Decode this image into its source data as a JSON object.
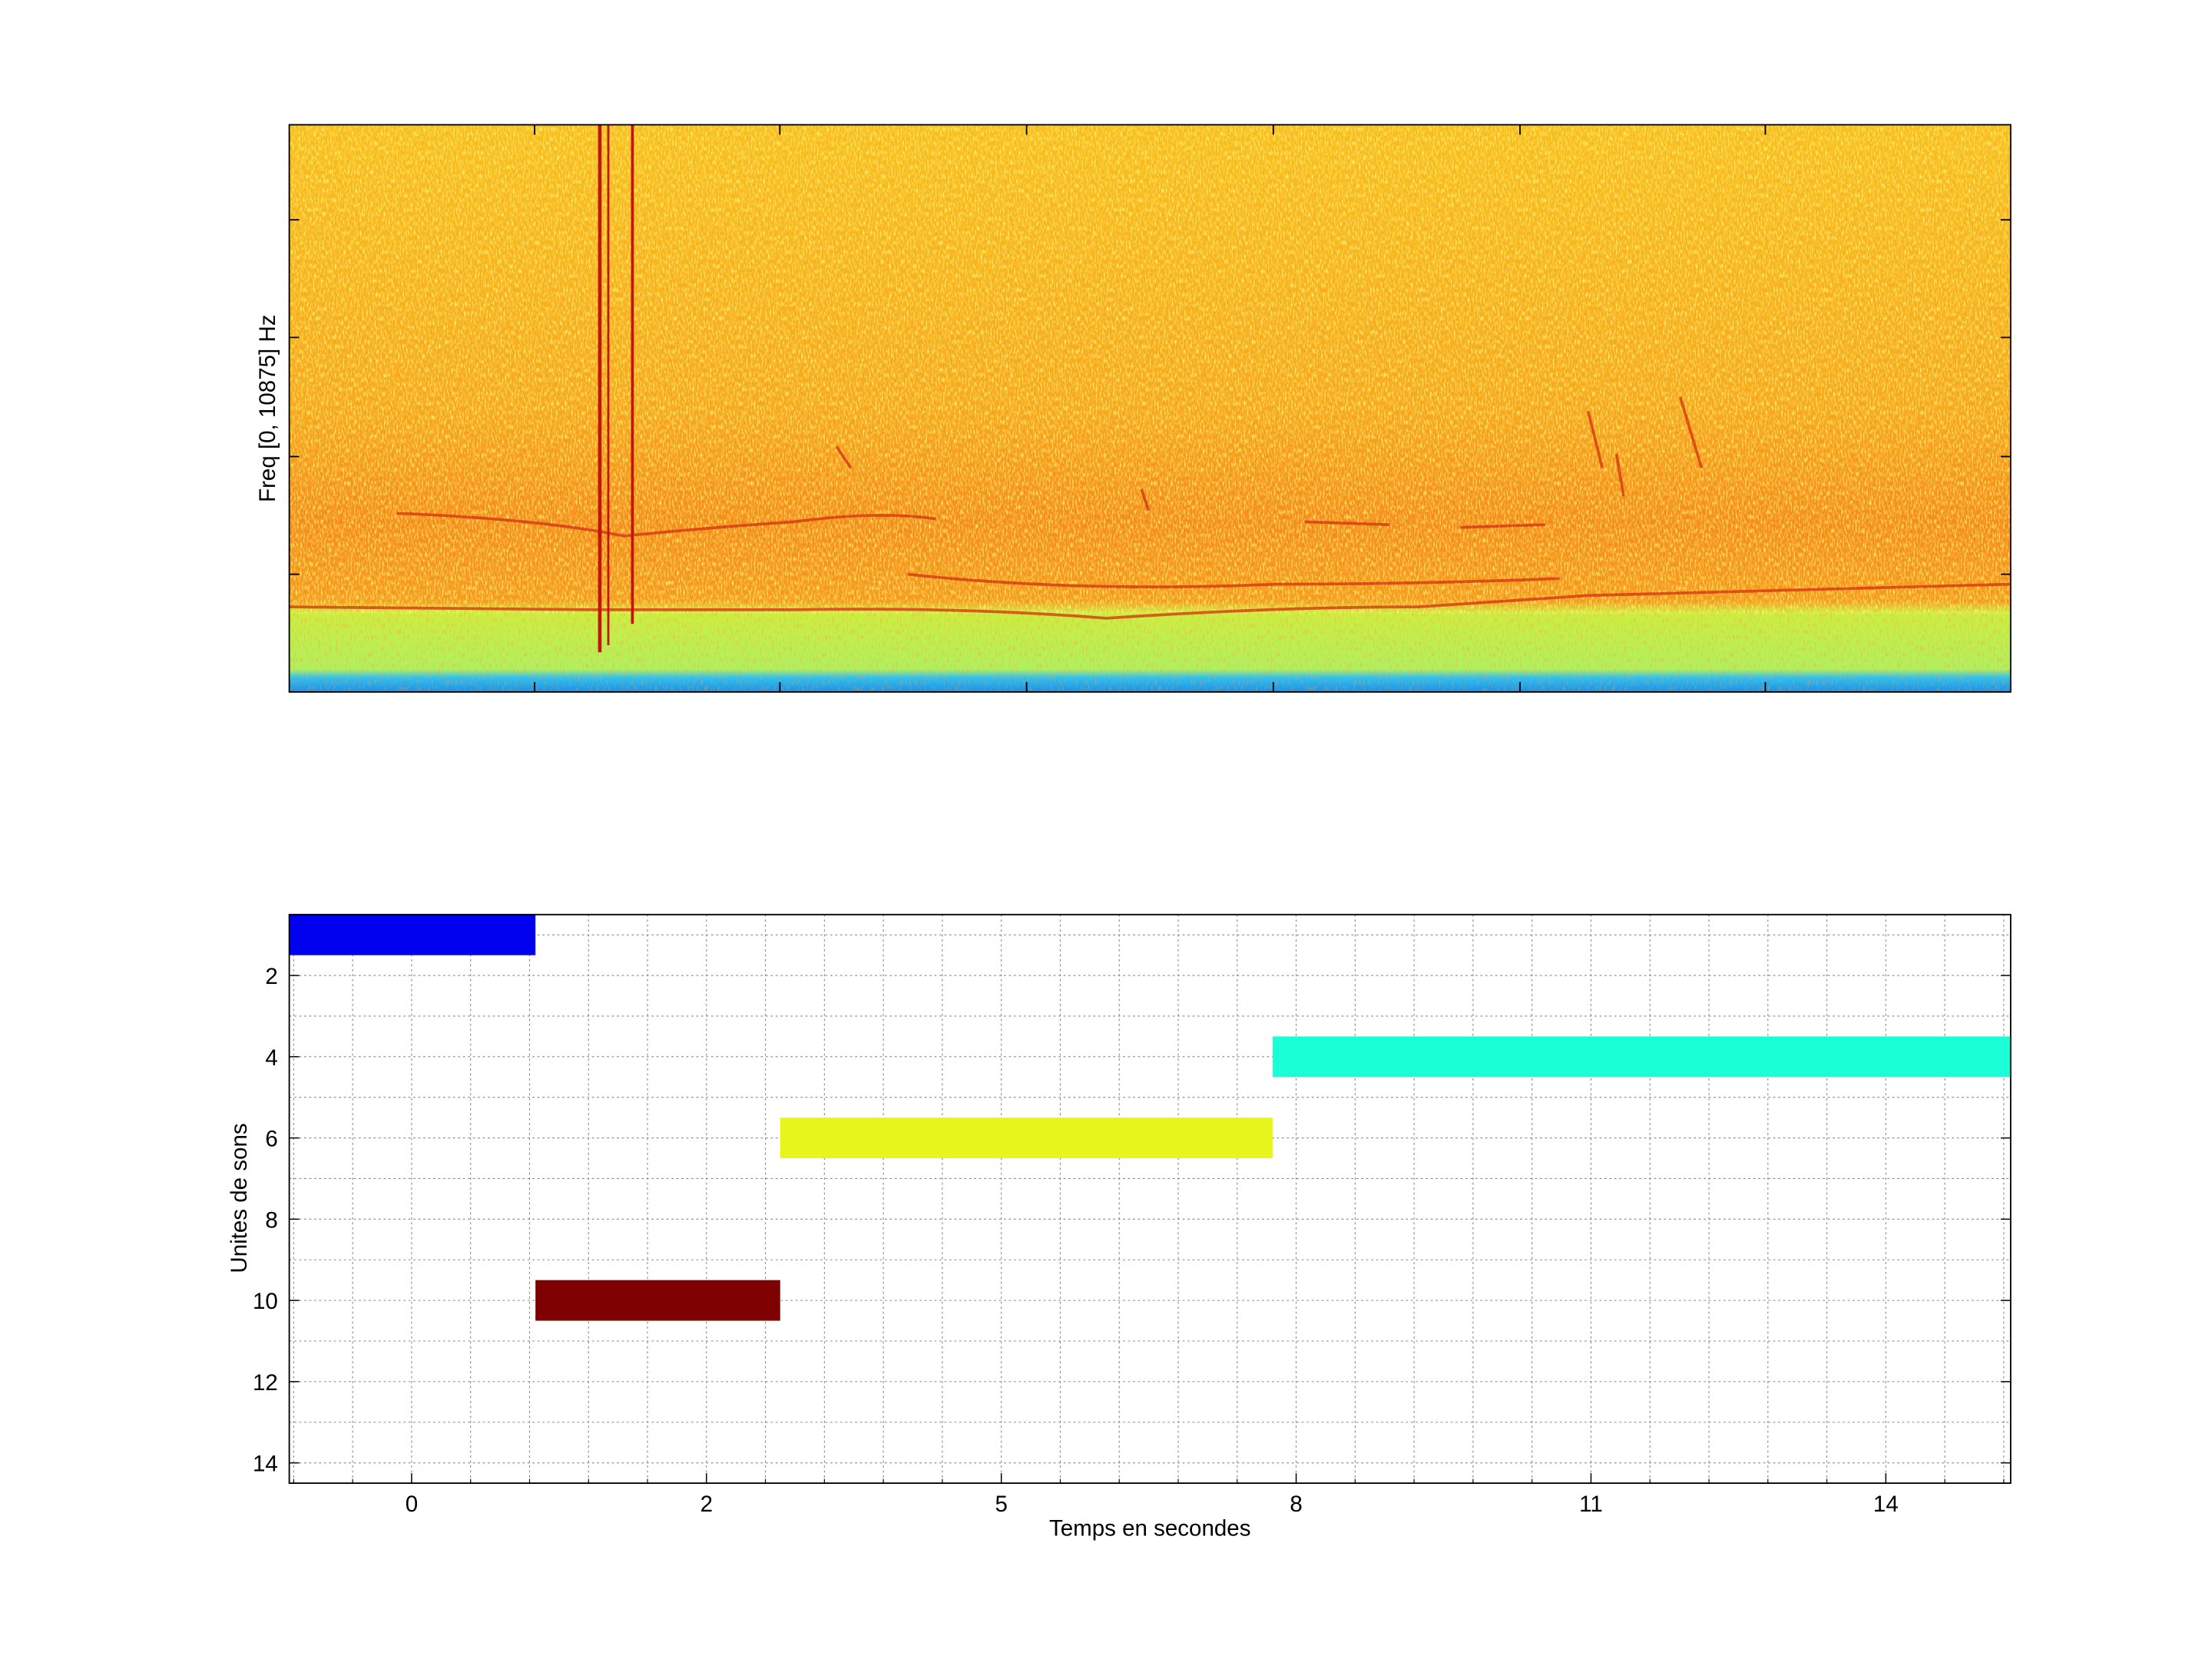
{
  "chart_data": [
    {
      "type": "spectrogram",
      "ylabel": "Freq [0, 10875] Hz"
    },
    {
      "type": "gantt",
      "xlabel": "Temps en secondes",
      "ylabel": "Unites de sons",
      "xlim": [
        -0.83,
        15.27
      ],
      "xticks": [
        0,
        2,
        5,
        8,
        11,
        14
      ],
      "ylim": [
        0.5,
        14.5
      ],
      "yticks": [
        2,
        4,
        6,
        8,
        10,
        12,
        14
      ],
      "y_reversed": true,
      "grid": true,
      "bars": [
        {
          "unit": 1,
          "start": -0.83,
          "end": 0.84,
          "color": "#0000ee"
        },
        {
          "unit": 10,
          "start": 0.84,
          "end": 2.75,
          "color": "#7f0000"
        },
        {
          "unit": 6,
          "start": 2.75,
          "end": 7.76,
          "color": "#e6f51c"
        },
        {
          "unit": 4,
          "start": 7.76,
          "end": 15.27,
          "color": "#1affd6"
        }
      ]
    }
  ]
}
